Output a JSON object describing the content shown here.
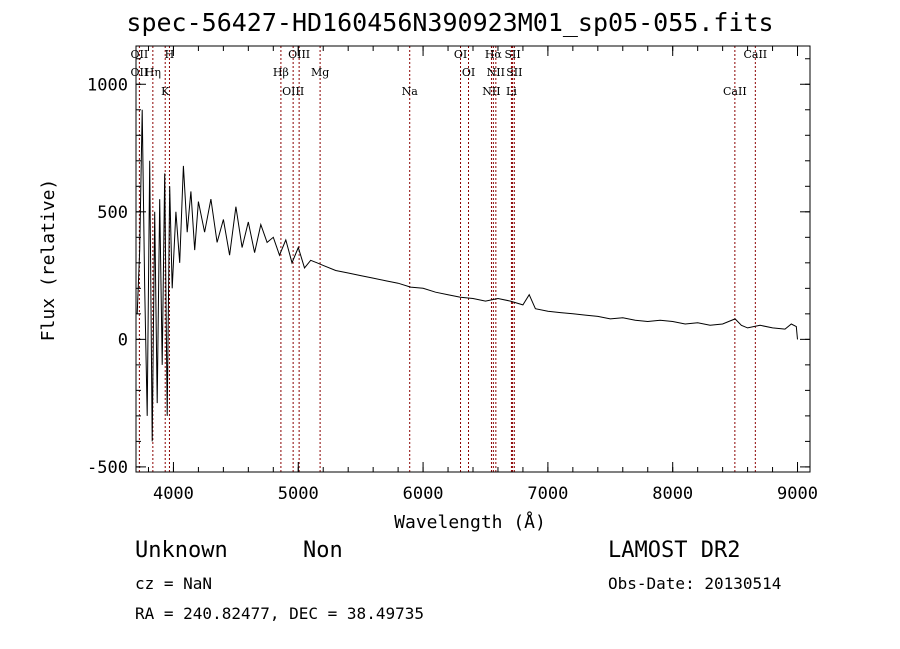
{
  "chart_data": {
    "type": "line",
    "title": "spec-56427-HD160456N390923M01_sp05-055.fits",
    "xlabel": "Wavelength (Å)",
    "ylabel": "Flux (relative)",
    "xlim": [
      3700,
      9100
    ],
    "ylim": [
      -520,
      1150
    ],
    "xticks": [
      4000,
      5000,
      6000,
      7000,
      8000,
      9000
    ],
    "yticks": [
      -500,
      0,
      500,
      1000
    ],
    "line_color": "#000000",
    "marker_color": "#8b0000",
    "series": [
      {
        "name": "flux",
        "x": [
          3710,
          3730,
          3750,
          3770,
          3790,
          3810,
          3830,
          3850,
          3870,
          3890,
          3910,
          3930,
          3950,
          3970,
          3990,
          4020,
          4050,
          4080,
          4110,
          4140,
          4170,
          4200,
          4250,
          4300,
          4350,
          4400,
          4450,
          4500,
          4550,
          4600,
          4650,
          4700,
          4750,
          4800,
          4850,
          4900,
          4950,
          5000,
          5050,
          5100,
          5150,
          5200,
          5300,
          5400,
          5500,
          5600,
          5700,
          5800,
          5900,
          6000,
          6100,
          6200,
          6300,
          6400,
          6500,
          6600,
          6700,
          6800,
          6850,
          6900,
          7000,
          7100,
          7200,
          7300,
          7400,
          7500,
          7600,
          7700,
          7800,
          7900,
          8000,
          8100,
          8200,
          8300,
          8400,
          8500,
          8550,
          8600,
          8700,
          8800,
          8900,
          8950,
          8990,
          9000
        ],
        "y": [
          100,
          350,
          900,
          200,
          -300,
          700,
          -400,
          500,
          -250,
          550,
          -100,
          650,
          -300,
          600,
          200,
          500,
          300,
          680,
          420,
          580,
          350,
          540,
          420,
          550,
          380,
          470,
          330,
          520,
          360,
          460,
          340,
          450,
          380,
          400,
          330,
          390,
          300,
          360,
          280,
          310,
          300,
          290,
          270,
          260,
          250,
          240,
          230,
          220,
          205,
          200,
          185,
          175,
          165,
          160,
          150,
          160,
          150,
          135,
          175,
          120,
          110,
          105,
          100,
          95,
          90,
          80,
          85,
          75,
          70,
          75,
          70,
          60,
          65,
          55,
          60,
          80,
          55,
          45,
          55,
          45,
          40,
          60,
          50,
          0
        ]
      }
    ],
    "lines": [
      {
        "name": "OII",
        "x": 3727,
        "labels": [
          "OII",
          "OII"
        ]
      },
      {
        "name": "Hη",
        "x": 3835,
        "labels": [
          "Hη"
        ]
      },
      {
        "name": "K",
        "x": 3934,
        "labels": [
          "K"
        ]
      },
      {
        "name": "H",
        "x": 3968,
        "labels": [
          "H"
        ]
      },
      {
        "name": "Hβ",
        "x": 4861,
        "labels": [
          "Hβ"
        ]
      },
      {
        "name": "OIII",
        "x": 4959,
        "labels": [
          "OIII"
        ]
      },
      {
        "name": "OIII",
        "x": 5007,
        "labels": [
          "OIII"
        ]
      },
      {
        "name": "Mg",
        "x": 5175,
        "labels": [
          "Mg"
        ]
      },
      {
        "name": "Na",
        "x": 5893,
        "labels": [
          "Na"
        ]
      },
      {
        "name": "OI",
        "x": 6300,
        "labels": [
          "OI"
        ]
      },
      {
        "name": "OI",
        "x": 6364,
        "labels": [
          "OI"
        ]
      },
      {
        "name": "NII",
        "x": 6548,
        "labels": [
          "NII"
        ]
      },
      {
        "name": "Hα",
        "x": 6563,
        "labels": [
          "Hα"
        ]
      },
      {
        "name": "NII",
        "x": 6583,
        "labels": [
          "NII"
        ]
      },
      {
        "name": "Li",
        "x": 6708,
        "labels": [
          "Li"
        ]
      },
      {
        "name": "SII",
        "x": 6717,
        "labels": [
          "SII"
        ]
      },
      {
        "name": "SII",
        "x": 6731,
        "labels": [
          "SII"
        ]
      },
      {
        "name": "CaII",
        "x": 8498,
        "labels": [
          "CaII"
        ]
      },
      {
        "name": "CaII",
        "x": 8662,
        "labels": [
          "CaII"
        ]
      }
    ]
  },
  "info": {
    "object_class": "Unknown",
    "object_subclass": "Non",
    "survey": "LAMOST DR2",
    "cz": "cz = NaN",
    "obs_date": "Obs-Date: 20130514",
    "radec": "RA = 240.82477, DEC =  38.49735"
  }
}
